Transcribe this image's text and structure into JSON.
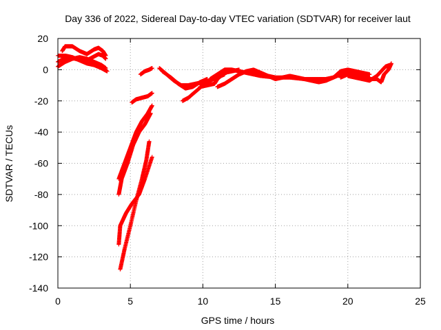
{
  "chart_data": {
    "type": "scatter",
    "title": "Day 336 of 2022, Sidereal Day-to-day VTEC variation (SDTVAR) for receiver laut",
    "xlabel": "GPS time / hours",
    "ylabel": "SDTVAR / TECUs",
    "xlim": [
      0,
      25
    ],
    "ylim": [
      -140,
      20
    ],
    "xticks": [
      0,
      5,
      10,
      15,
      20,
      25
    ],
    "yticks": [
      -140,
      -120,
      -100,
      -80,
      -60,
      -40,
      -20,
      0,
      20
    ],
    "grid": true,
    "legend": "none",
    "marker": "plus",
    "series": [
      {
        "color": "#ff0000",
        "points": [
          [
            0,
            2
          ],
          [
            0.5,
            5
          ],
          [
            1.0,
            7
          ],
          [
            1.5,
            8
          ],
          [
            2.0,
            7
          ],
          [
            2.5,
            5
          ],
          [
            3.0,
            3
          ],
          [
            3.3,
            1
          ]
        ]
      },
      {
        "color": "#ff0000",
        "points": [
          [
            0,
            9
          ],
          [
            0.5,
            9
          ],
          [
            1.0,
            8
          ],
          [
            1.5,
            6
          ],
          [
            2.0,
            4
          ],
          [
            2.5,
            3
          ],
          [
            3.0,
            1
          ],
          [
            3.4,
            -1
          ]
        ]
      },
      {
        "color": "#ff0000",
        "points": [
          [
            0,
            5
          ],
          [
            0.4,
            7
          ],
          [
            0.8,
            8
          ],
          [
            1.2,
            7
          ],
          [
            1.6,
            6
          ],
          [
            2.0,
            6
          ],
          [
            2.4,
            8
          ],
          [
            2.8,
            10
          ],
          [
            3.1,
            9
          ],
          [
            3.3,
            7
          ]
        ]
      },
      {
        "color": "#ff0000",
        "points": [
          [
            0.3,
            12
          ],
          [
            0.5,
            15
          ],
          [
            1.0,
            15
          ],
          [
            1.5,
            12
          ],
          [
            2.0,
            10
          ],
          [
            2.5,
            13
          ],
          [
            2.8,
            14
          ],
          [
            3.1,
            12
          ],
          [
            3.3,
            9
          ]
        ]
      },
      {
        "color": "#ff0000",
        "points": [
          [
            4.2,
            -70
          ],
          [
            4.6,
            -60
          ],
          [
            5.0,
            -50
          ],
          [
            5.4,
            -40
          ],
          [
            5.8,
            -33
          ],
          [
            6.2,
            -28
          ],
          [
            6.5,
            -23
          ]
        ]
      },
      {
        "color": "#ff0000",
        "points": [
          [
            4.2,
            -80
          ],
          [
            4.4,
            -70
          ],
          [
            4.8,
            -60
          ],
          [
            5.2,
            -48
          ],
          [
            5.6,
            -40
          ],
          [
            6.0,
            -35
          ],
          [
            6.4,
            -28
          ]
        ]
      },
      {
        "color": "#ff0000",
        "points": [
          [
            4.2,
            -112
          ],
          [
            4.3,
            -100
          ],
          [
            4.7,
            -92
          ],
          [
            5.1,
            -86
          ],
          [
            5.6,
            -80
          ],
          [
            6.0,
            -70
          ],
          [
            6.5,
            -56
          ]
        ]
      },
      {
        "color": "#ff0000",
        "points": [
          [
            4.3,
            -128
          ],
          [
            4.6,
            -115
          ],
          [
            5.0,
            -100
          ],
          [
            5.4,
            -84
          ],
          [
            5.8,
            -70
          ],
          [
            6.1,
            -58
          ],
          [
            6.3,
            -46
          ]
        ]
      },
      {
        "color": "#ff0000",
        "points": [
          [
            5.1,
            -21
          ],
          [
            5.4,
            -19
          ],
          [
            5.8,
            -18
          ],
          [
            6.2,
            -17
          ],
          [
            6.5,
            -15
          ]
        ]
      },
      {
        "color": "#ff0000",
        "points": [
          [
            5.7,
            -3
          ],
          [
            6.0,
            -1
          ],
          [
            6.3,
            0
          ],
          [
            6.5,
            1
          ]
        ]
      },
      {
        "color": "#ff0000",
        "points": [
          [
            7.0,
            1
          ],
          [
            7.5,
            -3
          ],
          [
            8.0,
            -7
          ],
          [
            8.5,
            -10
          ],
          [
            9.0,
            -10
          ],
          [
            9.5,
            -9
          ],
          [
            10.0,
            -8
          ]
        ]
      },
      {
        "color": "#ff0000",
        "points": [
          [
            7.2,
            -1
          ],
          [
            7.8,
            -5
          ],
          [
            8.3,
            -9
          ],
          [
            8.8,
            -12
          ],
          [
            9.3,
            -11
          ],
          [
            9.8,
            -8
          ],
          [
            10.3,
            -6
          ]
        ]
      },
      {
        "color": "#ff0000",
        "points": [
          [
            8.6,
            -20
          ],
          [
            9.0,
            -18
          ],
          [
            9.5,
            -14
          ],
          [
            10.0,
            -10
          ],
          [
            10.5,
            -7
          ],
          [
            11.0,
            -5
          ],
          [
            11.5,
            -3
          ]
        ]
      },
      {
        "color": "#ff0000",
        "points": [
          [
            9.8,
            -11
          ],
          [
            10.3,
            -10
          ],
          [
            10.8,
            -9
          ],
          [
            11.0,
            -6
          ],
          [
            11.5,
            -2
          ],
          [
            12.0,
            -1
          ],
          [
            12.5,
            0
          ]
        ]
      },
      {
        "color": "#ff0000",
        "points": [
          [
            10.5,
            -6
          ],
          [
            11.0,
            -3
          ],
          [
            11.5,
            0
          ],
          [
            12.0,
            0
          ],
          [
            12.5,
            -1
          ],
          [
            13.0,
            -2
          ],
          [
            13.5,
            -3
          ],
          [
            14.0,
            -4
          ]
        ]
      },
      {
        "color": "#ff0000",
        "points": [
          [
            11.0,
            -11
          ],
          [
            11.5,
            -9
          ],
          [
            12.0,
            -6
          ],
          [
            12.5,
            -3
          ],
          [
            13.0,
            -1
          ],
          [
            13.5,
            -2
          ],
          [
            14.0,
            -3
          ],
          [
            14.5,
            -4
          ],
          [
            15.0,
            -5
          ]
        ]
      },
      {
        "color": "#ff0000",
        "points": [
          [
            12.5,
            -3
          ],
          [
            13.0,
            -1
          ],
          [
            13.5,
            0
          ],
          [
            14.0,
            -2
          ],
          [
            14.5,
            -4
          ],
          [
            15.0,
            -6
          ],
          [
            15.5,
            -5
          ],
          [
            16.0,
            -4
          ],
          [
            16.5,
            -5
          ],
          [
            17.0,
            -6
          ],
          [
            17.5,
            -7
          ],
          [
            18.0,
            -8
          ],
          [
            18.5,
            -7
          ],
          [
            19.0,
            -5
          ],
          [
            19.5,
            -3
          ],
          [
            20.0,
            -2
          ],
          [
            20.5,
            -3
          ],
          [
            21.0,
            -4
          ],
          [
            21.5,
            -5
          ]
        ]
      },
      {
        "color": "#ff0000",
        "points": [
          [
            14.0,
            -4
          ],
          [
            15.0,
            -5
          ],
          [
            16.0,
            -5
          ],
          [
            17.0,
            -6
          ],
          [
            18.0,
            -6
          ],
          [
            18.5,
            -6
          ],
          [
            19.0,
            -5
          ],
          [
            19.5,
            -1
          ],
          [
            20.0,
            0
          ],
          [
            20.5,
            -1
          ],
          [
            21.0,
            -2
          ],
          [
            21.5,
            -3
          ]
        ]
      },
      {
        "color": "#ff0000",
        "points": [
          [
            19.5,
            -5
          ],
          [
            20.0,
            -3
          ],
          [
            20.5,
            -4
          ],
          [
            21.0,
            -5
          ],
          [
            21.5,
            -6
          ],
          [
            22.0,
            -6
          ],
          [
            22.3,
            -8
          ],
          [
            22.5,
            -3
          ],
          [
            22.8,
            0
          ],
          [
            23.0,
            4
          ]
        ]
      },
      {
        "color": "#ff0000",
        "points": [
          [
            20.0,
            -4
          ],
          [
            20.5,
            -5
          ],
          [
            21.0,
            -6
          ],
          [
            21.5,
            -7
          ],
          [
            22.0,
            -4
          ],
          [
            22.3,
            -1
          ],
          [
            22.6,
            2
          ],
          [
            22.9,
            3
          ]
        ]
      }
    ]
  }
}
